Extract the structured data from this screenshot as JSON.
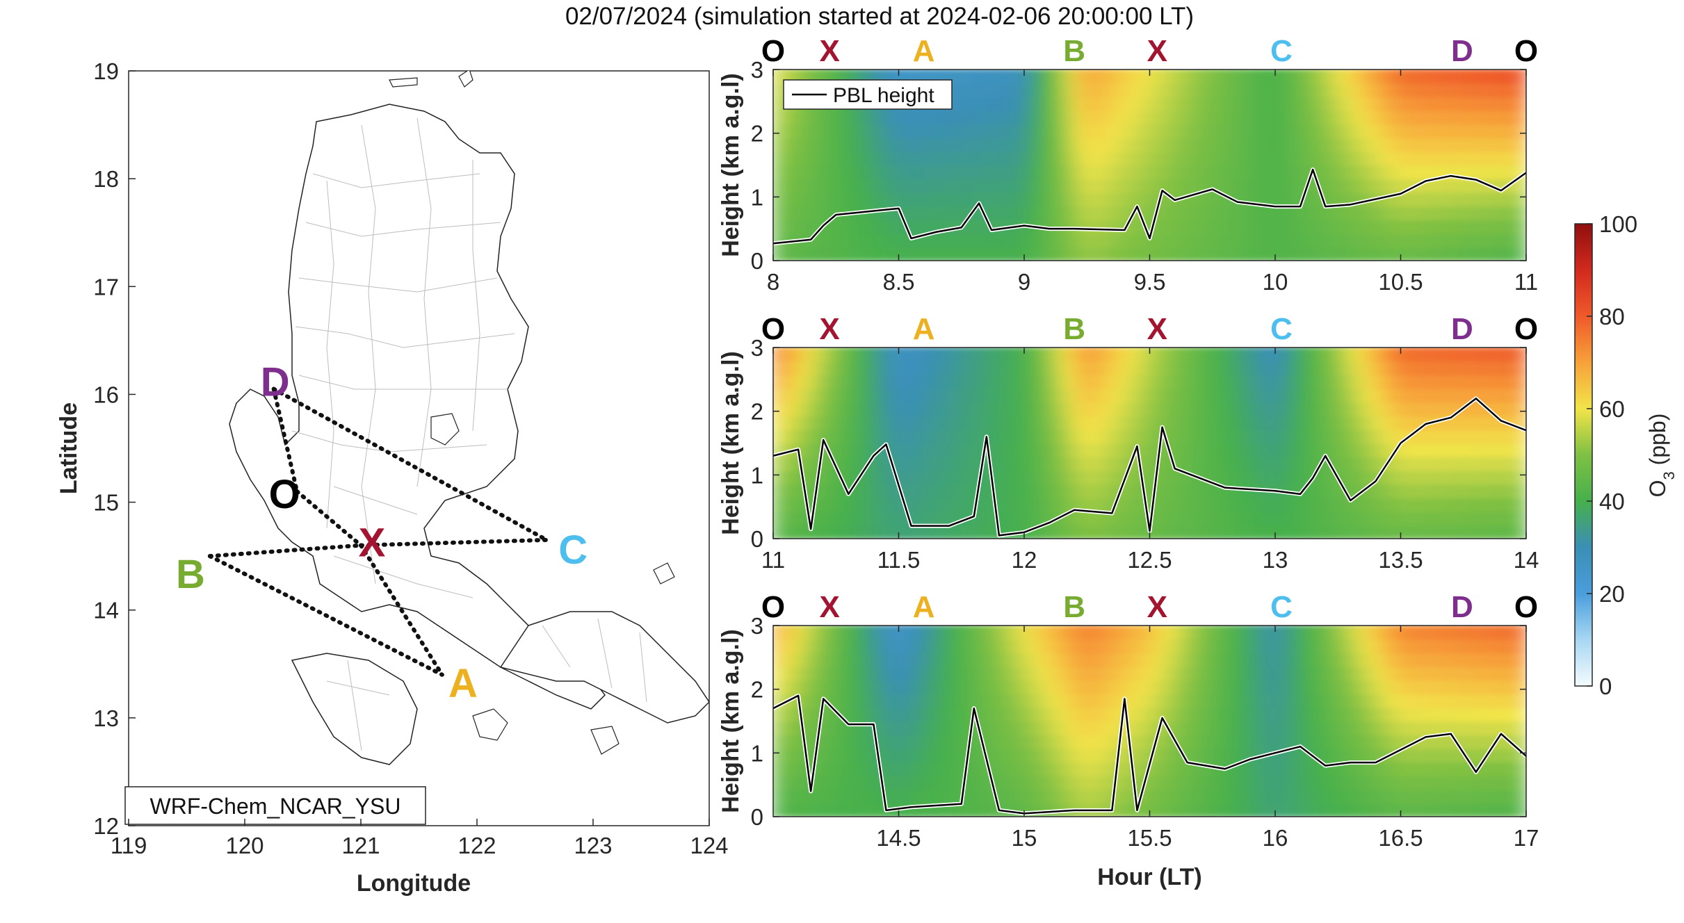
{
  "title": "02/07/2024 (simulation started at 2024-02-06 20:00:00 LT)",
  "colors": {
    "O": "#000000",
    "X": "#a2142f",
    "A": "#edb120",
    "B": "#77ac30",
    "C": "#4dbeee",
    "D": "#7e2f8e"
  },
  "map": {
    "model_label": "WRF-Chem_NCAR_YSU",
    "xlabel": "Longitude",
    "ylabel": "Latitude",
    "xticks": [
      "119",
      "120",
      "121",
      "122",
      "123",
      "124"
    ],
    "yticks": [
      "12",
      "13",
      "14",
      "15",
      "16",
      "17",
      "18",
      "19"
    ],
    "points": {
      "D": [
        120.25,
        16.05
      ],
      "O": [
        120.45,
        15.1
      ],
      "X": [
        121.0,
        14.6
      ],
      "C": [
        122.6,
        14.65
      ],
      "B": [
        119.7,
        14.5
      ],
      "A": [
        121.7,
        13.4
      ]
    },
    "label_text": {
      "D": "D",
      "O": "O",
      "X": "X",
      "C": "C",
      "B": "B",
      "A": "A"
    }
  },
  "chart_data": [
    {
      "type": "heatmap",
      "panel": 1,
      "xlabel": "",
      "ylabel": "Height (km a.g.l)",
      "xlim": [
        8,
        11
      ],
      "ylim": [
        0,
        3
      ],
      "xticks": [
        "8",
        "8.5",
        "9",
        "9.5",
        "10",
        "10.5",
        "11"
      ],
      "yticks": [
        "0",
        "1",
        "2",
        "3"
      ],
      "legend": {
        "label": "PBL height",
        "placement": "top-left"
      },
      "route_labels": [
        "O",
        "X",
        "A",
        "B",
        "X",
        "C",
        "D",
        "O"
      ],
      "pbl_height": {
        "x": [
          8.0,
          8.15,
          8.2,
          8.25,
          8.35,
          8.5,
          8.55,
          8.65,
          8.75,
          8.82,
          8.87,
          9.0,
          9.1,
          9.2,
          9.4,
          9.45,
          9.5,
          9.55,
          9.6,
          9.75,
          9.85,
          10.0,
          10.1,
          10.15,
          10.2,
          10.3,
          10.5,
          10.6,
          10.7,
          10.8,
          10.9,
          11.0
        ],
        "y": [
          0.27,
          0.33,
          0.55,
          0.72,
          0.76,
          0.82,
          0.35,
          0.45,
          0.52,
          0.9,
          0.48,
          0.55,
          0.5,
          0.5,
          0.48,
          0.85,
          0.35,
          1.1,
          0.95,
          1.12,
          0.92,
          0.85,
          0.85,
          1.43,
          0.85,
          0.88,
          1.05,
          1.25,
          1.33,
          1.27,
          1.1,
          1.38
        ]
      },
      "o3_ppb": {
        "x": [
          8.0,
          8.5,
          9.0,
          9.25,
          9.5,
          10.0,
          10.5,
          11.0
        ],
        "z_top": [
          60,
          25,
          28,
          70,
          60,
          40,
          78,
          82
        ],
        "z_bottom": [
          45,
          40,
          40,
          52,
          48,
          42,
          46,
          42
        ]
      }
    },
    {
      "type": "heatmap",
      "panel": 2,
      "xlabel": "",
      "ylabel": "Height (km a.g.l)",
      "xlim": [
        11,
        14
      ],
      "ylim": [
        0,
        3
      ],
      "xticks": [
        "11",
        "11.5",
        "12",
        "12.5",
        "13",
        "13.5",
        "14"
      ],
      "yticks": [
        "0",
        "1",
        "2",
        "3"
      ],
      "route_labels": [
        "O",
        "X",
        "A",
        "B",
        "X",
        "C",
        "D",
        "O"
      ],
      "pbl_height": {
        "x": [
          11.0,
          11.1,
          11.15,
          11.2,
          11.3,
          11.4,
          11.45,
          11.55,
          11.7,
          11.8,
          11.85,
          11.9,
          12.0,
          12.1,
          12.2,
          12.35,
          12.45,
          12.5,
          12.55,
          12.6,
          12.8,
          13.0,
          13.1,
          13.15,
          13.2,
          13.3,
          13.4,
          13.5,
          13.6,
          13.7,
          13.8,
          13.9,
          14.0
        ],
        "y": [
          1.3,
          1.4,
          0.15,
          1.55,
          0.7,
          1.3,
          1.48,
          0.2,
          0.2,
          0.35,
          1.6,
          0.05,
          0.1,
          0.25,
          0.45,
          0.4,
          1.45,
          0.12,
          1.75,
          1.1,
          0.8,
          0.75,
          0.7,
          0.95,
          1.3,
          0.6,
          0.9,
          1.5,
          1.8,
          1.9,
          2.2,
          1.85,
          1.7
        ]
      },
      "o3_ppb": {
        "x": [
          11.0,
          11.5,
          12.0,
          12.25,
          12.5,
          13.0,
          13.5,
          14.0
        ],
        "z_top": [
          76,
          26,
          40,
          72,
          56,
          28,
          78,
          80
        ],
        "z_bottom": [
          44,
          36,
          40,
          50,
          46,
          40,
          46,
          44
        ]
      }
    },
    {
      "type": "heatmap",
      "panel": 3,
      "xlabel": "Hour (LT)",
      "ylabel": "Height (km a.g.l)",
      "xlim": [
        14,
        17
      ],
      "ylim": [
        0,
        3
      ],
      "xticks": [
        "14.5",
        "15",
        "15.5",
        "16",
        "16.5",
        "17"
      ],
      "yticks": [
        "0",
        "1",
        "2",
        "3"
      ],
      "route_labels": [
        "O",
        "X",
        "A",
        "B",
        "X",
        "C",
        "D",
        "O"
      ],
      "pbl_height": {
        "x": [
          14.0,
          14.1,
          14.15,
          14.2,
          14.3,
          14.4,
          14.45,
          14.55,
          14.75,
          14.8,
          14.9,
          15.0,
          15.2,
          15.35,
          15.4,
          15.45,
          15.55,
          15.65,
          15.8,
          15.9,
          16.0,
          16.1,
          16.2,
          16.3,
          16.4,
          16.6,
          16.7,
          16.8,
          16.9,
          17.0
        ],
        "y": [
          1.7,
          1.9,
          0.4,
          1.85,
          1.45,
          1.45,
          0.1,
          0.15,
          0.2,
          1.7,
          0.1,
          0.05,
          0.1,
          0.1,
          1.85,
          0.1,
          1.55,
          0.85,
          0.75,
          0.9,
          1.0,
          1.1,
          0.8,
          0.85,
          0.85,
          1.25,
          1.3,
          0.7,
          1.3,
          0.95
        ]
      },
      "o3_ppb": {
        "x": [
          14.0,
          14.5,
          15.0,
          15.25,
          15.5,
          16.0,
          16.5,
          17.0
        ],
        "z_top": [
          70,
          24,
          60,
          75,
          66,
          30,
          74,
          78
        ],
        "z_bottom": [
          42,
          40,
          44,
          54,
          48,
          36,
          44,
          42
        ]
      }
    }
  ],
  "colorbar": {
    "label_base": "O",
    "label_sub": "3",
    "label_unit": " (ppb)",
    "ticks": [
      "0",
      "20",
      "40",
      "60",
      "80",
      "100"
    ],
    "range": [
      0,
      100
    ]
  }
}
